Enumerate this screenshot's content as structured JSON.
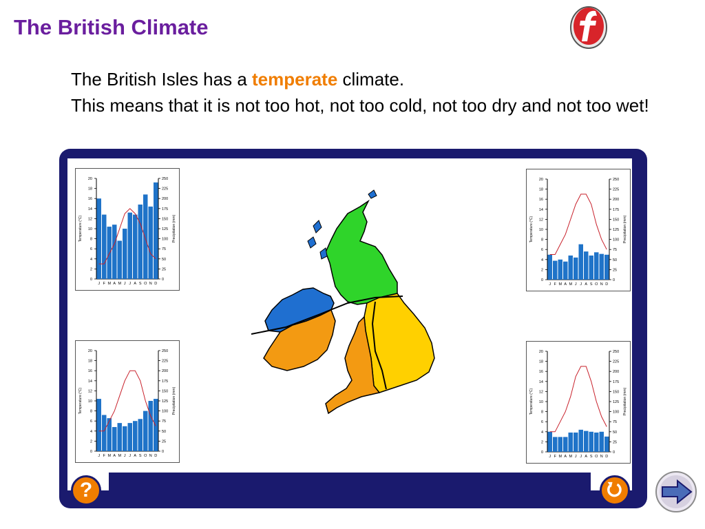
{
  "header": {
    "title": "The British Climate"
  },
  "intro": {
    "line1_before": "The British Isles has a ",
    "line1_highlight": "temperate",
    "line1_after": " climate.",
    "line2": "This means that it is not too hot, not too cold, not too dry and not too wet!"
  },
  "colors": {
    "title": "#6a1e9e",
    "highlight": "#f07d00",
    "panel": "#1a1a6e",
    "bar": "#1f73c8",
    "line": "#c8202a",
    "map_green": "#2fd42a",
    "map_blue": "#1f6fd0",
    "map_orange": "#f39a12",
    "map_yellow": "#ffd000"
  },
  "icons": {
    "logo": "flash-logo-icon",
    "help": "help-icon",
    "replay": "replay-icon",
    "next": "next-arrow-icon"
  },
  "buttons": {
    "help_label": "?"
  },
  "chart_data": [
    {
      "type": "bar",
      "position": "top-left",
      "categories": [
        "J",
        "F",
        "M",
        "A",
        "M",
        "J",
        "J",
        "A",
        "S",
        "O",
        "N",
        "D"
      ],
      "y_left_label": "Temperature (°C)",
      "y_right_label": "Precipitation (mm)",
      "y_left_ticks": [
        "0",
        "2",
        "4",
        "6",
        "8",
        "10",
        "12",
        "14",
        "16",
        "18",
        "20"
      ],
      "y_right_ticks": [
        "0",
        "25",
        "50",
        "75",
        "100",
        "125",
        "150",
        "175",
        "200",
        "225",
        "250"
      ],
      "precipitation": [
        200,
        160,
        130,
        135,
        95,
        125,
        165,
        160,
        185,
        210,
        180,
        240
      ],
      "temperature": [
        3,
        3,
        5,
        7,
        10,
        13,
        14,
        13,
        11,
        8,
        5,
        4
      ]
    },
    {
      "type": "bar",
      "position": "top-right",
      "categories": [
        "J",
        "F",
        "M",
        "A",
        "M",
        "J",
        "J",
        "A",
        "S",
        "O",
        "N",
        "D"
      ],
      "y_left_label": "Temperature (°C)",
      "y_right_label": "Precipitation (mm)",
      "y_left_ticks": [
        "0",
        "2",
        "4",
        "6",
        "8",
        "10",
        "12",
        "14",
        "16",
        "18",
        "20"
      ],
      "y_right_ticks": [
        "0",
        "25",
        "50",
        "75",
        "100",
        "125",
        "150",
        "175",
        "200",
        "225",
        "250"
      ],
      "precipitation": [
        62,
        47,
        50,
        45,
        60,
        55,
        88,
        70,
        60,
        68,
        64,
        62
      ],
      "temperature": [
        5,
        5,
        7,
        9,
        12,
        15,
        17,
        17,
        15,
        11,
        8,
        6
      ]
    },
    {
      "type": "bar",
      "position": "bottom-left",
      "categories": [
        "J",
        "F",
        "M",
        "A",
        "M",
        "J",
        "J",
        "A",
        "S",
        "O",
        "N",
        "D"
      ],
      "y_left_label": "Temperature (°C)",
      "y_right_label": "Precipitation (mm)",
      "y_left_ticks": [
        "0",
        "2",
        "4",
        "6",
        "8",
        "10",
        "12",
        "14",
        "16",
        "18",
        "20"
      ],
      "y_right_ticks": [
        "0",
        "25",
        "50",
        "75",
        "100",
        "125",
        "150",
        "175",
        "200",
        "225",
        "250"
      ],
      "precipitation": [
        130,
        90,
        82,
        60,
        70,
        62,
        70,
        75,
        80,
        100,
        125,
        130
      ],
      "temperature": [
        4,
        4,
        6,
        8,
        11,
        14,
        16,
        16,
        14,
        10,
        7,
        5
      ]
    },
    {
      "type": "bar",
      "position": "bottom-right",
      "categories": [
        "J",
        "F",
        "M",
        "A",
        "M",
        "J",
        "J",
        "A",
        "S",
        "O",
        "N",
        "D"
      ],
      "y_left_label": "Temperature (°C)",
      "y_right_label": "Precipitation (mm)",
      "y_left_ticks": [
        "0",
        "2",
        "4",
        "6",
        "8",
        "10",
        "12",
        "14",
        "16",
        "18",
        "20"
      ],
      "y_right_ticks": [
        "0",
        "25",
        "50",
        "75",
        "100",
        "125",
        "150",
        "175",
        "200",
        "225",
        "250"
      ],
      "precipitation": [
        50,
        37,
        37,
        37,
        48,
        48,
        55,
        52,
        50,
        48,
        50,
        38
      ],
      "temperature": [
        4,
        4,
        6,
        8,
        11,
        15,
        17,
        17,
        14,
        10,
        7,
        5
      ]
    }
  ]
}
